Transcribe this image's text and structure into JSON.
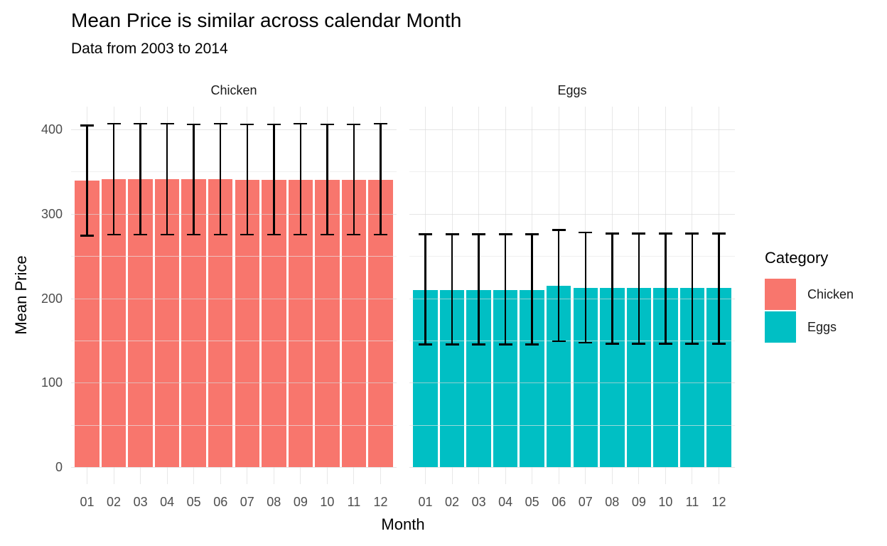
{
  "title": "Mean Price is similar across calendar Month",
  "subtitle": "Data from 2003 to 2014",
  "facets": [
    "Chicken",
    "Eggs"
  ],
  "axes": {
    "x_title": "Month",
    "y_title": "Mean Price",
    "y_ticks": [
      "0",
      "100",
      "200",
      "300",
      "400"
    ]
  },
  "legend": {
    "title": "Category",
    "items": [
      {
        "label": "Chicken",
        "color": "#F8766D"
      },
      {
        "label": "Eggs",
        "color": "#00BFC4"
      }
    ]
  },
  "chart_data": {
    "type": "bar",
    "title": "Mean Price is similar across calendar Month",
    "subtitle": "Data from 2003 to 2014",
    "xlabel": "Month",
    "ylabel": "Mean Price",
    "ylim": [
      0,
      427
    ],
    "y_major_ticks": [
      0,
      100,
      200,
      300,
      400
    ],
    "y_minor_ticks": [
      50,
      150,
      250,
      350
    ],
    "grid": "on",
    "legend_position": "right",
    "error_bars": "mean +/- sd",
    "categories": [
      "01",
      "02",
      "03",
      "04",
      "05",
      "06",
      "07",
      "08",
      "09",
      "10",
      "11",
      "12"
    ],
    "series": [
      {
        "name": "Chicken",
        "color": "#F8766D",
        "mean": [
          339,
          341,
          341,
          341,
          341,
          341,
          340,
          340,
          340,
          340,
          340,
          340
        ],
        "err_low": [
          274,
          275,
          275,
          275,
          275,
          275,
          275,
          275,
          275,
          275,
          275,
          275
        ],
        "err_high": [
          405,
          407,
          407,
          407,
          406,
          407,
          406,
          406,
          407,
          406,
          406,
          407
        ]
      },
      {
        "name": "Eggs",
        "color": "#00BFC4",
        "mean": [
          210,
          210,
          210,
          210,
          210,
          215,
          212,
          212,
          212,
          212,
          212,
          212
        ],
        "err_low": [
          145,
          145,
          145,
          145,
          145,
          149,
          147,
          146,
          146,
          146,
          146,
          146
        ],
        "err_high": [
          276,
          276,
          276,
          276,
          276,
          281,
          278,
          277,
          277,
          277,
          277,
          277
        ]
      }
    ]
  }
}
